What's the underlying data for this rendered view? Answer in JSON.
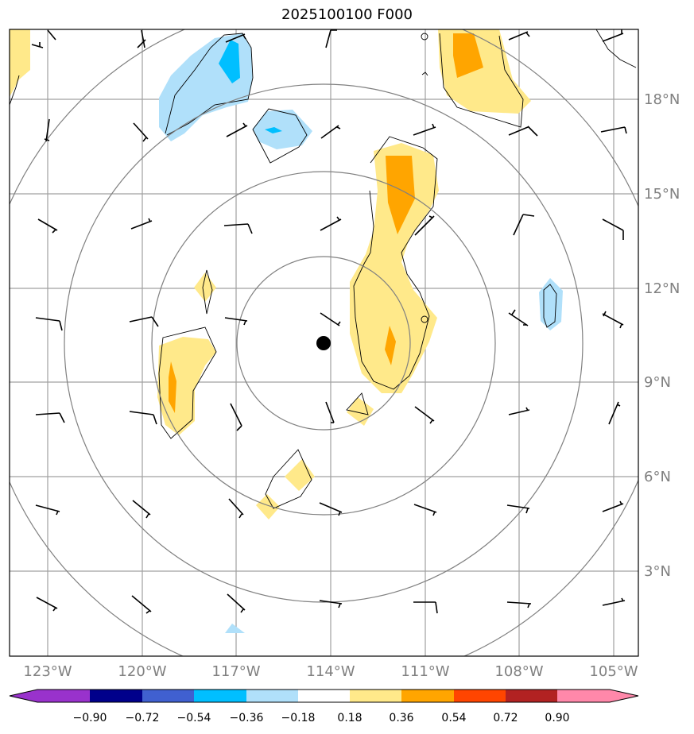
{
  "title": "2025100100 F000",
  "lat_labels": [
    "18°N",
    "15°N",
    "12°N",
    "9°N",
    "6°N",
    "3°N"
  ],
  "lon_labels": [
    "123°W",
    "120°W",
    "117°W",
    "114°W",
    "111°W",
    "108°W",
    "105°W"
  ],
  "colorbar": {
    "ticks": [
      "−0.90",
      "−0.72",
      "−0.54",
      "−0.36",
      "−0.18",
      "0.18",
      "0.36",
      "0.54",
      "0.72",
      "0.90"
    ],
    "colors": [
      "#9932cc",
      "#00008b",
      "#4060d0",
      "#00bfff",
      "#b0e0fa",
      "#ffffff",
      "#ffe98a",
      "#ffa500",
      "#ff4500",
      "#b22222",
      "#ff88aa"
    ]
  },
  "colors": {
    "grid": "#a0a0a0",
    "ring": "#808080",
    "positive_1": "#ffe98a",
    "positive_2": "#ffa500",
    "negative_1": "#b0e0fa",
    "negative_2": "#00bfff"
  },
  "storm_center_icon": "storm-center-dot"
}
